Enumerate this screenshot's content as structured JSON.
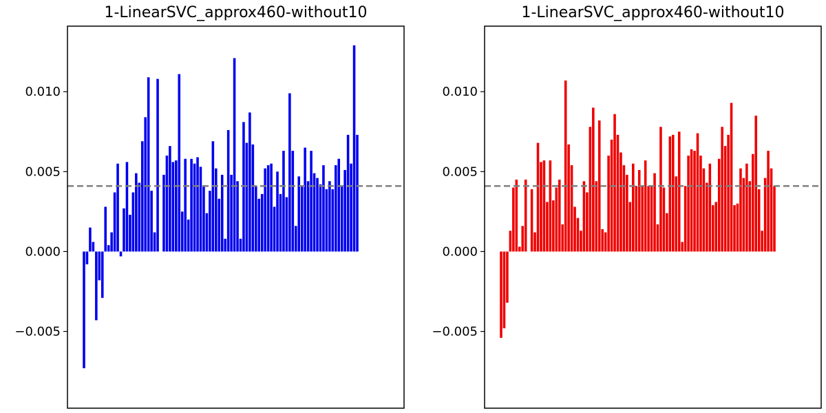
{
  "colors": {
    "left_bars": "#0000ee",
    "right_bars": "#ee0000",
    "reference_line": "#808080"
  },
  "chart_data": [
    {
      "type": "bar",
      "title": "1-LinearSVC_approx460-without10",
      "xlabel": "",
      "ylabel": "",
      "ylim": [
        -0.0098,
        0.0141
      ],
      "yticks": [
        {
          "value": -0.005,
          "label": "−0.005"
        },
        {
          "value": 0.0,
          "label": "0.000"
        },
        {
          "value": 0.005,
          "label": "0.005"
        },
        {
          "value": 0.01,
          "label": "0.010"
        }
      ],
      "xticks": [],
      "grid": false,
      "reference_line": {
        "y": 0.0041,
        "style": "dashed"
      },
      "bar_color": "blue",
      "values": [
        -0.0073,
        -0.0008,
        0.0015,
        0.0006,
        -0.0043,
        -0.0018,
        -0.0029,
        0.0028,
        0.0004,
        0.0012,
        0.0037,
        0.0055,
        -0.0003,
        0.0027,
        0.0056,
        0.0023,
        0.0037,
        0.0049,
        0.0043,
        0.0069,
        0.0084,
        0.0109,
        0.0038,
        0.0012,
        0.0108,
        0.0,
        0.0048,
        0.006,
        0.0066,
        0.0056,
        0.0057,
        0.0111,
        0.0025,
        0.0058,
        0.002,
        0.0058,
        0.0055,
        0.0059,
        0.0053,
        0.0041,
        0.0024,
        0.0038,
        0.0069,
        0.0052,
        0.0033,
        0.0048,
        0.0008,
        0.0076,
        0.0048,
        0.0121,
        0.0044,
        0.0008,
        0.0081,
        0.0068,
        0.0087,
        0.0067,
        0.0041,
        0.0033,
        0.0036,
        0.0052,
        0.0054,
        0.0055,
        0.0028,
        0.005,
        0.0036,
        0.0063,
        0.0034,
        0.0099,
        0.0063,
        0.0016,
        0.0047,
        0.0041,
        0.0065,
        0.0044,
        0.0063,
        0.0049,
        0.0046,
        0.0042,
        0.0054,
        0.0039,
        0.0044,
        0.0039,
        0.0054,
        0.0058,
        0.0041,
        0.0051,
        0.0073,
        0.0055,
        0.0129,
        0.0073
      ]
    },
    {
      "type": "bar",
      "title": "1-LinearSVC_approx460-without10",
      "xlabel": "",
      "ylabel": "",
      "ylim": [
        -0.0098,
        0.0141
      ],
      "yticks": [
        {
          "value": -0.005,
          "label": "−0.005"
        },
        {
          "value": 0.0,
          "label": "0.000"
        },
        {
          "value": 0.005,
          "label": "0.005"
        },
        {
          "value": 0.01,
          "label": "0.010"
        }
      ],
      "xticks": [],
      "grid": false,
      "reference_line": {
        "y": 0.0041,
        "style": "dashed"
      },
      "bar_color": "red",
      "values": [
        -0.0054,
        -0.0048,
        -0.0032,
        0.0013,
        0.004,
        0.0045,
        0.0003,
        0.0016,
        0.0045,
        0.0,
        0.0039,
        0.0012,
        0.0068,
        0.0056,
        0.0057,
        0.0031,
        0.0057,
        0.0032,
        0.004,
        0.0045,
        0.0017,
        0.0107,
        0.0067,
        0.0054,
        0.0028,
        0.0021,
        0.0013,
        0.0044,
        0.0037,
        0.0078,
        0.009,
        0.0044,
        0.0082,
        0.0014,
        0.0012,
        0.006,
        0.007,
        0.0086,
        0.0073,
        0.0062,
        0.0054,
        0.0048,
        0.0031,
        0.0055,
        0.0041,
        0.0051,
        0.0041,
        0.0057,
        0.0041,
        0.0041,
        0.0049,
        0.0017,
        0.0078,
        0.004,
        0.0024,
        0.0072,
        0.0073,
        0.0047,
        0.0075,
        0.0006,
        0.0041,
        0.006,
        0.0064,
        0.0063,
        0.0074,
        0.006,
        0.0052,
        0.0043,
        0.0055,
        0.0029,
        0.0031,
        0.0058,
        0.0078,
        0.0066,
        0.0073,
        0.0093,
        0.0029,
        0.003,
        0.0052,
        0.0046,
        0.0055,
        0.0044,
        0.0061,
        0.0085,
        0.0039,
        0.0013,
        0.0046,
        0.0063,
        0.0052,
        0.0041
      ]
    }
  ]
}
